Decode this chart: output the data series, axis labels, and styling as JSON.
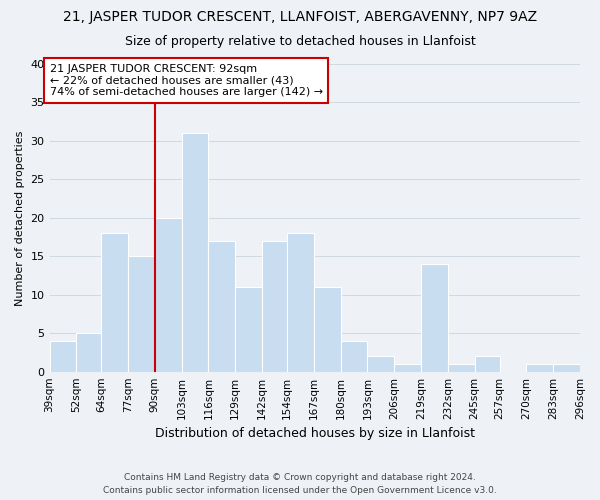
{
  "title": "21, JASPER TUDOR CRESCENT, LLANFOIST, ABERGAVENNY, NP7 9AZ",
  "subtitle": "Size of property relative to detached houses in Llanfoist",
  "xlabel": "Distribution of detached houses by size in Llanfoist",
  "ylabel": "Number of detached properties",
  "bin_edges": [
    39,
    52,
    64,
    77,
    90,
    103,
    116,
    129,
    142,
    154,
    167,
    180,
    193,
    206,
    219,
    232,
    245,
    257,
    270,
    283,
    296
  ],
  "bin_labels": [
    "39sqm",
    "52sqm",
    "64sqm",
    "77sqm",
    "90sqm",
    "103sqm",
    "116sqm",
    "129sqm",
    "142sqm",
    "154sqm",
    "167sqm",
    "180sqm",
    "193sqm",
    "206sqm",
    "219sqm",
    "232sqm",
    "245sqm",
    "257sqm",
    "270sqm",
    "283sqm",
    "296sqm"
  ],
  "counts": [
    4,
    5,
    18,
    15,
    20,
    31,
    17,
    11,
    17,
    18,
    11,
    4,
    2,
    1,
    14,
    1,
    2,
    0,
    1,
    1
  ],
  "bar_color": "#c9ddf0",
  "bar_edge_color": "#ffffff",
  "grid_color": "#d0d8e0",
  "vline_x": 90,
  "vline_color": "#cc0000",
  "annotation_text": "21 JASPER TUDOR CRESCENT: 92sqm\n← 22% of detached houses are smaller (43)\n74% of semi-detached houses are larger (142) →",
  "annotation_box_color": "#ffffff",
  "annotation_box_edge": "#cc0000",
  "ylim": [
    0,
    40
  ],
  "yticks": [
    0,
    5,
    10,
    15,
    20,
    25,
    30,
    35,
    40
  ],
  "footer_line1": "Contains HM Land Registry data © Crown copyright and database right 2024.",
  "footer_line2": "Contains public sector information licensed under the Open Government Licence v3.0.",
  "bg_color": "#eef2f7"
}
